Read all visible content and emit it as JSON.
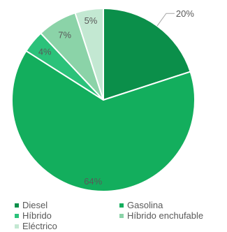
{
  "chart_data": {
    "type": "pie",
    "title": "",
    "start_angle_deg": 0,
    "direction": "clockwise",
    "legend_position": "bottom",
    "slices": [
      {
        "name": "Diesel",
        "value": 20,
        "label": "20%",
        "color": "#0b8f4a"
      },
      {
        "name": "Gasolina",
        "value": 64,
        "label": "64%",
        "color": "#13ae5d"
      },
      {
        "name": "Híbrido",
        "value": 4,
        "label": "4%",
        "color": "#2bc27a"
      },
      {
        "name": "Híbrido enchufable",
        "value": 7,
        "label": "7%",
        "color": "#8bd3a8"
      },
      {
        "name": "Eléctrico",
        "value": 5,
        "label": "5%",
        "color": "#c3e8d2"
      }
    ]
  }
}
